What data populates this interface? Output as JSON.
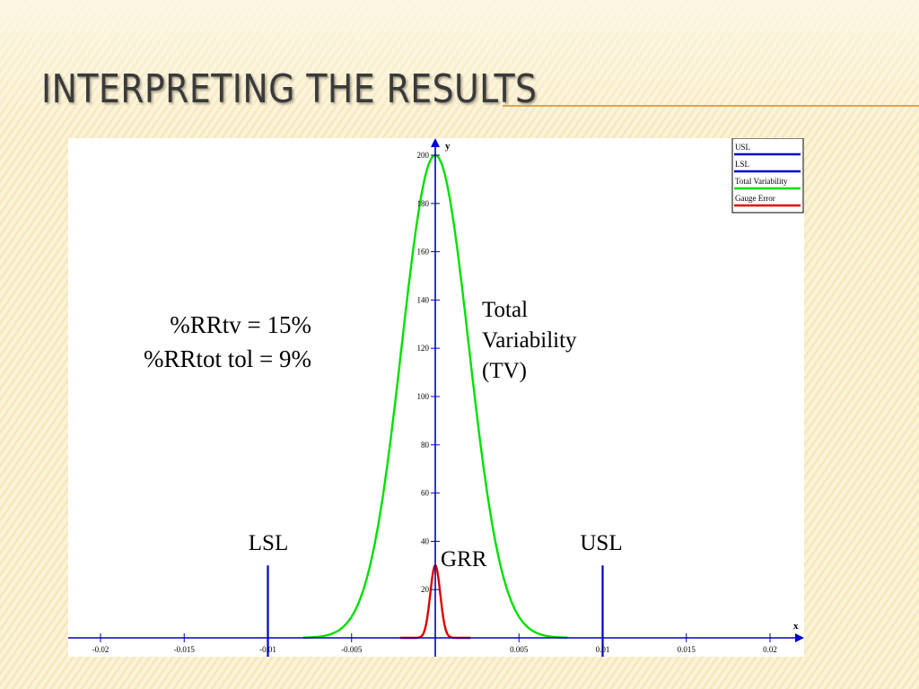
{
  "slide": {
    "title": "Interpreting the Results"
  },
  "chart_data": {
    "type": "line",
    "title": "",
    "xlabel": "x",
    "ylabel": "y",
    "xlim": [
      -0.022,
      0.0222
    ],
    "ylim": [
      0,
      208
    ],
    "x_ticks": [
      -0.02,
      -0.015,
      -0.01,
      -0.005,
      0,
      0.005,
      0.01,
      0.015,
      0.02
    ],
    "x_tick_labels": [
      "-0.02",
      "-0.015",
      "-0.01",
      "-0.005",
      "",
      "0.005",
      "0.01",
      "0.015",
      "0.02"
    ],
    "y_ticks": [
      20,
      40,
      60,
      80,
      100,
      120,
      140,
      160,
      180,
      200
    ],
    "y_tick_labels": [
      "20",
      "40",
      "60",
      "80",
      "100",
      "120",
      "140",
      "160",
      "180",
      "200"
    ],
    "grid": false,
    "legend_position": "top-right",
    "series": [
      {
        "name": "USL",
        "color": "#0000cc",
        "kind": "vertical",
        "x": 0.01,
        "y_range": [
          0,
          30
        ]
      },
      {
        "name": "LSL",
        "color": "#0000cc",
        "kind": "vertical",
        "x": -0.01,
        "y_range": [
          0,
          30
        ]
      },
      {
        "name": "Total Variability",
        "color": "#00e000",
        "kind": "normal",
        "mean": 0,
        "sd": 0.002,
        "peak": 200,
        "x_range": [
          -0.0079,
          0.0079
        ]
      },
      {
        "name": "Gauge Error",
        "color": "#e00000",
        "kind": "normal",
        "mean": 0,
        "sd": 0.0003,
        "peak": 30,
        "x_range": [
          -0.0021,
          0.0021
        ]
      }
    ],
    "annotations": {
      "stat1": "%RRtv = 15%",
      "stat2": "%RRtot tol = 9%",
      "tv_line1": "Total",
      "tv_line2": "Variability",
      "tv_line3": "(TV)",
      "lsl": "LSL",
      "usl": "USL",
      "grr": "GRR"
    }
  }
}
